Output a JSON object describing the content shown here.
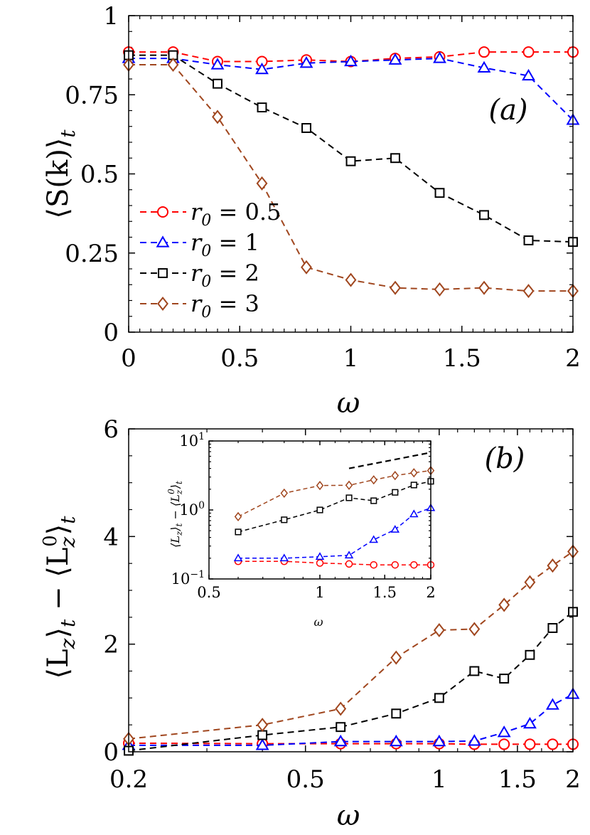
{
  "colors": {
    "r05": "#ff0000",
    "r1": "#0000ff",
    "r2": "#000000",
    "r3": "#a0461e"
  },
  "chart_data": [
    {
      "type": "line",
      "panel_label": "(a)",
      "xlabel": "ω",
      "ylabel": "⟨S(k)⟩_t",
      "ylabel_main": "⟨S(k)⟩",
      "ylabel_sub": "t",
      "xlim": [
        0,
        2
      ],
      "ylim": [
        0,
        1
      ],
      "xticks": [
        0,
        0.5,
        1,
        1.5,
        2
      ],
      "xtick_labels": [
        "0",
        "0.5",
        "1",
        "1.5",
        "2"
      ],
      "yticks": [
        0,
        0.25,
        0.5,
        0.75,
        1
      ],
      "ytick_labels": [
        "0",
        "0.25",
        "0.5",
        "0.75",
        "1"
      ],
      "legend_position": "lower-left",
      "series": [
        {
          "name": "r0 = 0.5",
          "label_main": "r",
          "label_sub": "0",
          "label_tail": " = 0.5",
          "marker": "circle",
          "color": "#ff0000",
          "x": [
            0,
            0.2,
            0.4,
            0.6,
            0.8,
            1.0,
            1.2,
            1.4,
            1.6,
            1.8,
            2.0
          ],
          "y": [
            0.885,
            0.885,
            0.855,
            0.855,
            0.86,
            0.855,
            0.865,
            0.87,
            0.885,
            0.885,
            0.885
          ]
        },
        {
          "name": "r0 = 1",
          "label_main": "r",
          "label_sub": "0",
          "label_tail": " = 1",
          "marker": "triangle",
          "color": "#0000ff",
          "x": [
            0,
            0.2,
            0.4,
            0.6,
            0.8,
            1.0,
            1.2,
            1.4,
            1.6,
            1.8,
            2.0
          ],
          "y": [
            0.865,
            0.865,
            0.845,
            0.83,
            0.85,
            0.855,
            0.86,
            0.865,
            0.835,
            0.81,
            0.67
          ]
        },
        {
          "name": "r0 = 2",
          "label_main": "r",
          "label_sub": "0",
          "label_tail": " = 2",
          "marker": "square",
          "color": "#000000",
          "x": [
            0,
            0.2,
            0.4,
            0.6,
            0.8,
            1.0,
            1.2,
            1.4,
            1.6,
            1.8,
            2.0
          ],
          "y": [
            0.875,
            0.875,
            0.785,
            0.71,
            0.645,
            0.54,
            0.55,
            0.44,
            0.37,
            0.29,
            0.285
          ]
        },
        {
          "name": "r0 = 3",
          "label_main": "r",
          "label_sub": "0",
          "label_tail": " = 3",
          "marker": "diamond",
          "color": "#a0461e",
          "x": [
            0,
            0.2,
            0.4,
            0.6,
            0.8,
            1.0,
            1.2,
            1.4,
            1.6,
            1.8,
            2.0
          ],
          "y": [
            0.845,
            0.845,
            0.68,
            0.47,
            0.205,
            0.165,
            0.14,
            0.135,
            0.14,
            0.13,
            0.13
          ]
        }
      ]
    },
    {
      "type": "line",
      "panel_label": "(b)",
      "xlabel": "ω",
      "xscale": "log",
      "ylabel": "⟨L_z⟩_t − ⟨L_z^0⟩_t",
      "ylabel_a": "⟨L",
      "ylabel_a_sub": "z",
      "ylabel_b": "⟩",
      "ylabel_b_sub": "t",
      "ylabel_c": " − ⟨L",
      "ylabel_c_sub": "z",
      "ylabel_c_sup": "0",
      "ylabel_d": "⟩",
      "ylabel_d_sub": "t",
      "xlim": [
        0.2,
        2
      ],
      "ylim": [
        0,
        6
      ],
      "xticks": [
        0.2,
        0.5,
        1,
        1.5,
        2
      ],
      "xtick_labels": [
        "0.2",
        "0.5",
        "1",
        "1.5",
        "2"
      ],
      "yticks": [
        0,
        2,
        4,
        6
      ],
      "ytick_labels": [
        "0",
        "2",
        "4",
        "6"
      ],
      "series": [
        {
          "name": "r0 = 0.5",
          "marker": "circle",
          "color": "#ff0000",
          "x": [
            0.2,
            0.4,
            0.6,
            0.8,
            1.0,
            1.2,
            1.4,
            1.6,
            1.8,
            2.0
          ],
          "y": [
            0.16,
            0.15,
            0.15,
            0.15,
            0.15,
            0.14,
            0.14,
            0.14,
            0.14,
            0.14
          ]
        },
        {
          "name": "r0 = 1",
          "marker": "triangle",
          "color": "#0000ff",
          "x": [
            0.2,
            0.4,
            0.6,
            0.8,
            1.0,
            1.2,
            1.4,
            1.6,
            1.8,
            2.0
          ],
          "y": [
            0.12,
            0.12,
            0.19,
            0.19,
            0.19,
            0.2,
            0.36,
            0.52,
            0.87,
            1.07
          ]
        },
        {
          "name": "r0 = 2",
          "marker": "square",
          "color": "#000000",
          "x": [
            0.2,
            0.4,
            0.6,
            0.8,
            1.0,
            1.2,
            1.4,
            1.6,
            1.8,
            2.0
          ],
          "y": [
            0.02,
            0.31,
            0.46,
            0.71,
            1.0,
            1.5,
            1.36,
            1.8,
            2.3,
            2.6
          ]
        },
        {
          "name": "r0 = 3",
          "marker": "diamond",
          "color": "#a0461e",
          "x": [
            0.2,
            0.4,
            0.6,
            0.8,
            1.0,
            1.2,
            1.4,
            1.6,
            1.8,
            2.0
          ],
          "y": [
            0.24,
            0.5,
            0.8,
            1.75,
            2.26,
            2.28,
            2.73,
            3.15,
            3.46,
            3.72
          ]
        }
      ]
    },
    {
      "type": "line",
      "role": "inset",
      "xscale": "log",
      "yscale": "log",
      "xlabel": "ω",
      "ylabel": "⟨L_z⟩_t − ⟨L_z^0⟩_t",
      "ylabel_a": "⟨L",
      "ylabel_a_sub": "z",
      "ylabel_b": "⟩",
      "ylabel_b_sub": "t",
      "ylabel_c": " − ⟨L",
      "ylabel_c_sub": "z",
      "ylabel_c_sup": "0",
      "ylabel_d": "⟩",
      "ylabel_d_sub": "t",
      "xlim": [
        0.5,
        2
      ],
      "ylim": [
        0.1,
        10
      ],
      "xticks": [
        0.5,
        1,
        1.5,
        2
      ],
      "xtick_labels": [
        "0.5",
        "1",
        "1.5",
        "2"
      ],
      "yticks": [
        0.1,
        1,
        10
      ],
      "ytick_base": "10",
      "ytick_exps": [
        "−1",
        "0",
        "1"
      ],
      "reference_line": {
        "style": "dashed",
        "color": "#000000",
        "x": [
          1.2,
          2.0
        ],
        "y": [
          4.0,
          6.8
        ]
      },
      "series": [
        {
          "name": "r0 = 0.5",
          "marker": "circle",
          "color": "#ff0000",
          "x": [
            0.6,
            0.8,
            1.0,
            1.2,
            1.4,
            1.6,
            1.8,
            2.0
          ],
          "y": [
            0.18,
            0.18,
            0.17,
            0.165,
            0.16,
            0.16,
            0.16,
            0.16
          ]
        },
        {
          "name": "r0 = 1",
          "marker": "triangle",
          "color": "#0000ff",
          "x": [
            0.6,
            0.8,
            1.0,
            1.2,
            1.4,
            1.6,
            1.8,
            2.0
          ],
          "y": [
            0.2,
            0.2,
            0.21,
            0.22,
            0.37,
            0.52,
            0.87,
            1.07
          ]
        },
        {
          "name": "r0 = 2",
          "marker": "square",
          "color": "#000000",
          "x": [
            0.6,
            0.8,
            1.0,
            1.2,
            1.4,
            1.6,
            1.8,
            2.0
          ],
          "y": [
            0.48,
            0.72,
            1.0,
            1.5,
            1.36,
            1.8,
            2.3,
            2.6
          ]
        },
        {
          "name": "r0 = 3",
          "marker": "diamond",
          "color": "#a0461e",
          "x": [
            0.6,
            0.8,
            1.0,
            1.2,
            1.4,
            1.6,
            1.8,
            2.0
          ],
          "y": [
            0.8,
            1.75,
            2.26,
            2.28,
            2.73,
            3.15,
            3.46,
            3.72
          ]
        }
      ]
    }
  ]
}
